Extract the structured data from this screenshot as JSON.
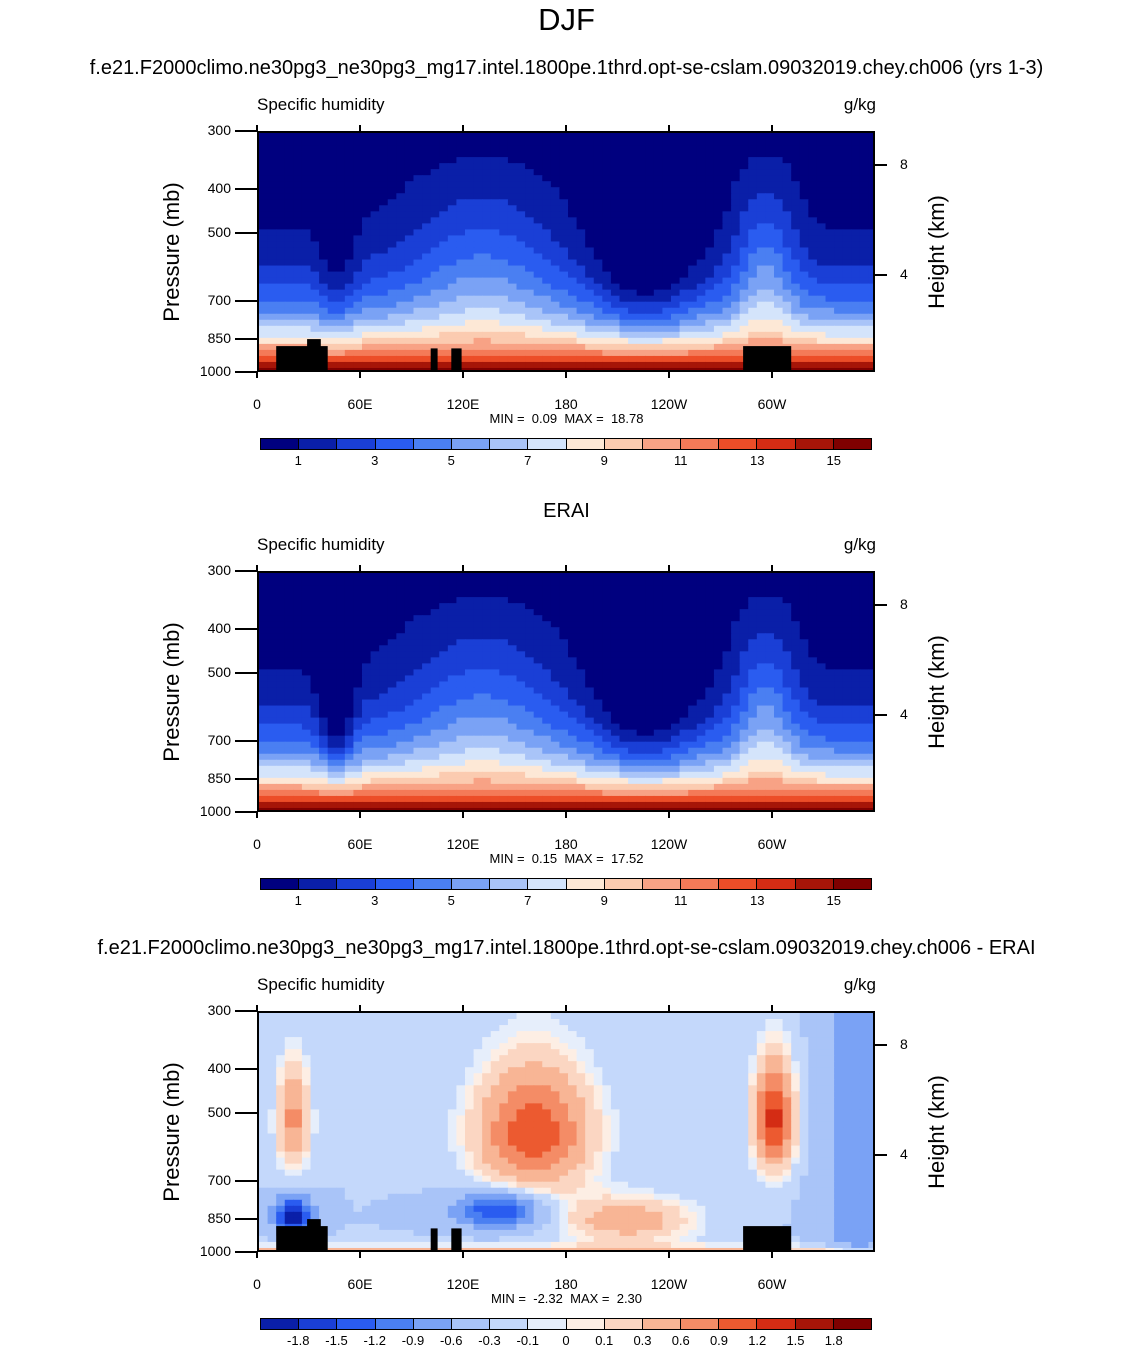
{
  "title": "DJF",
  "colors": {
    "full_palette": [
      "#00007f",
      "#0a1fa8",
      "#1a3fd6",
      "#2a5cf0",
      "#4a7ff2",
      "#7aa2f5",
      "#a9c4f8",
      "#d4e4fb",
      "#fde8d6",
      "#fbcbb0",
      "#f8a285",
      "#f47a58",
      "#ec4d28",
      "#d42c14",
      "#a61508",
      "#7f0000"
    ],
    "diff_palette": [
      "#0a1fa8",
      "#1a3fd6",
      "#2a5cf0",
      "#4a7ff2",
      "#7aa2f5",
      "#a9c4f8",
      "#c4d8fb",
      "#e6eefb",
      "#fdeee4",
      "#fbd6c2",
      "#f8b595",
      "#f48c66",
      "#ec5a30",
      "#d42c14",
      "#a61508",
      "#7f0000"
    ],
    "topo": "#000000"
  },
  "chart_data": [
    {
      "type": "heatmap",
      "subtitle": "f.e21.F2000climo.ne30pg3_ne30pg3_mg17.intel.1800pe.1thrd.opt-se-cslam.09032019.chey.ch006 (yrs 1-3)",
      "variable": "Specific humidity",
      "units": "g/kg",
      "ylabel": "Pressure (mb)",
      "ylabel_right": "Height (km)",
      "pressure_ticks": [
        "300",
        "400",
        "500",
        "700",
        "850",
        "1000"
      ],
      "height_ticks": [
        "8",
        "4"
      ],
      "lon_ticks": [
        "0",
        "60E",
        "120E",
        "180",
        "120W",
        "60W"
      ],
      "ylim": [
        1000,
        300
      ],
      "xlim": [
        0,
        360
      ],
      "min_label": "MIN =",
      "min_value": "0.09",
      "max_label": "MAX =",
      "max_value": "18.78",
      "colorbar_labels": [
        "1",
        "3",
        "5",
        "7",
        "9",
        "11",
        "13",
        "15"
      ]
    },
    {
      "type": "heatmap",
      "subtitle": "ERAI",
      "variable": "Specific humidity",
      "units": "g/kg",
      "ylabel": "Pressure (mb)",
      "ylabel_right": "Height (km)",
      "pressure_ticks": [
        "300",
        "400",
        "500",
        "700",
        "850",
        "1000"
      ],
      "height_ticks": [
        "8",
        "4"
      ],
      "lon_ticks": [
        "0",
        "60E",
        "120E",
        "180",
        "120W",
        "60W"
      ],
      "ylim": [
        1000,
        300
      ],
      "xlim": [
        0,
        360
      ],
      "min_label": "MIN =",
      "min_value": "0.15",
      "max_label": "MAX =",
      "max_value": "17.52",
      "colorbar_labels": [
        "1",
        "3",
        "5",
        "7",
        "9",
        "11",
        "13",
        "15"
      ]
    },
    {
      "type": "heatmap",
      "subtitle": "f.e21.F2000climo.ne30pg3_ne30pg3_mg17.intel.1800pe.1thrd.opt-se-cslam.09032019.chey.ch006 - ERAI",
      "variable": "Specific humidity",
      "units": "g/kg",
      "ylabel": "Pressure (mb)",
      "ylabel_right": "Height (km)",
      "pressure_ticks": [
        "300",
        "400",
        "500",
        "700",
        "850",
        "1000"
      ],
      "height_ticks": [
        "8",
        "4"
      ],
      "lon_ticks": [
        "0",
        "60E",
        "120E",
        "180",
        "120W",
        "60W"
      ],
      "ylim": [
        1000,
        300
      ],
      "xlim": [
        0,
        360
      ],
      "min_label": "MIN =",
      "min_value": "-2.32",
      "max_label": "MAX =",
      "max_value": "2.30",
      "colorbar_labels": [
        "-1.8",
        "-1.5",
        "-1.2",
        "-0.9",
        "-0.6",
        "-0.3",
        "-0.1",
        "0",
        "0.1",
        "0.3",
        "0.6",
        "0.9",
        "1.2",
        "1.5",
        "1.8"
      ]
    }
  ]
}
